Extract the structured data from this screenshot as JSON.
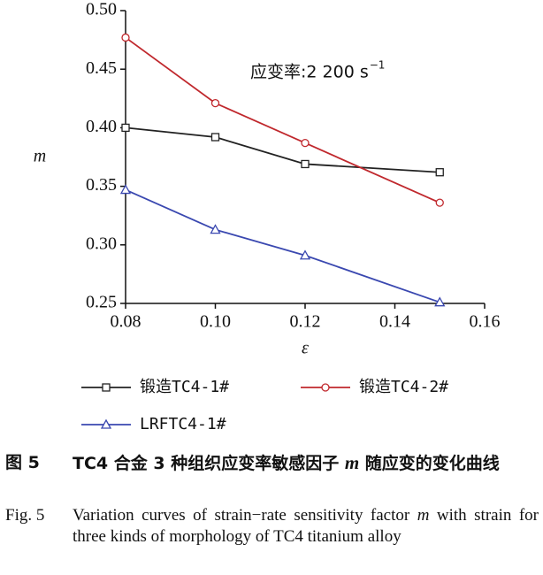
{
  "chart_data": {
    "type": "line",
    "x": [
      0.08,
      0.1,
      0.12,
      0.15
    ],
    "series": [
      {
        "name": "锻造TC4-1#",
        "color": "#222222",
        "marker": "square",
        "values": [
          0.4,
          0.392,
          0.369,
          0.362
        ]
      },
      {
        "name": "锻造TC4-2#",
        "color": "#c0282d",
        "marker": "circle",
        "values": [
          0.477,
          0.421,
          0.387,
          0.336
        ]
      },
      {
        "name": "LRFTC4-1#",
        "color": "#3a48b0",
        "marker": "triangle",
        "values": [
          0.347,
          0.313,
          0.291,
          0.251
        ]
      }
    ],
    "xlim": [
      0.08,
      0.16
    ],
    "xticks": [
      {
        "value": 0.08,
        "label": "0.08"
      },
      {
        "value": 0.1,
        "label": "0.10"
      },
      {
        "value": 0.12,
        "label": "0.12"
      },
      {
        "value": 0.14,
        "label": "0.14"
      },
      {
        "value": 0.16,
        "label": "0.16"
      }
    ],
    "ylim": [
      0.25,
      0.5
    ],
    "yticks": [
      {
        "value": 0.25,
        "label": "0.25"
      },
      {
        "value": 0.3,
        "label": "0.30"
      },
      {
        "value": 0.35,
        "label": "0.35"
      },
      {
        "value": 0.4,
        "label": "0.40"
      },
      {
        "value": 0.45,
        "label": "0.45"
      },
      {
        "value": 0.5,
        "label": "0.50"
      }
    ],
    "x_label": "ε",
    "y_label": "m",
    "annotation": {
      "text": "应变率:2 200 s",
      "sup": "−1"
    }
  },
  "caption": {
    "cn_label": "图 5",
    "cn_text": [
      "TC4 合金 3 种组织应变率敏感因子 ",
      "m",
      " 随应变的变化曲线"
    ],
    "en_label": "Fig. 5",
    "en_text": [
      "Variation curves of strain−rate sensitivity factor ",
      "m",
      " with strain for three kinds of morphology of TC4 titanium alloy"
    ]
  }
}
